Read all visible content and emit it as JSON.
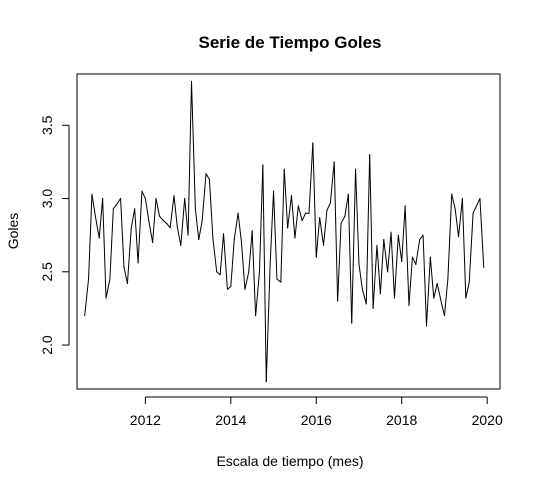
{
  "chart_data": {
    "type": "line",
    "title": "Serie de Tiempo Goles",
    "xlabel": "Escala de tiempo (mes)",
    "ylabel": "Goles",
    "xlim": [
      2010.4,
      2020.3
    ],
    "ylim": [
      1.7,
      3.85
    ],
    "xticks": [
      "2012",
      "2014",
      "2016",
      "2018",
      "2020"
    ],
    "yticks": [
      "2.0",
      "2.5",
      "3.0",
      "3.5"
    ],
    "grid": false,
    "series": [
      {
        "x": [
          2010.58,
          2010.67,
          2010.75,
          2010.83,
          2010.92,
          2011.0,
          2011.08,
          2011.17,
          2011.25,
          2011.33,
          2011.42,
          2011.5,
          2011.58,
          2011.67,
          2011.75,
          2011.83,
          2011.92,
          2012.0,
          2012.08,
          2012.17,
          2012.25,
          2012.33,
          2012.42,
          2012.5,
          2012.58,
          2012.67,
          2012.75,
          2012.83,
          2012.92,
          2013.0,
          2013.08,
          2013.17,
          2013.25,
          2013.33,
          2013.42,
          2013.5,
          2013.58,
          2013.67,
          2013.75,
          2013.83,
          2013.92,
          2014.0,
          2014.08,
          2014.17,
          2014.25,
          2014.33,
          2014.42,
          2014.5,
          2014.58,
          2014.67,
          2014.75,
          2014.83,
          2014.92,
          2015.0,
          2015.08,
          2015.17,
          2015.25,
          2015.33,
          2015.42,
          2015.5,
          2015.58,
          2015.67,
          2015.75,
          2015.83,
          2015.92,
          2016.0,
          2016.08,
          2016.17,
          2016.25,
          2016.33,
          2016.42,
          2016.5,
          2016.58,
          2016.67,
          2016.75,
          2016.83,
          2016.92,
          2017.0,
          2017.08,
          2017.17,
          2017.25,
          2017.33,
          2017.42,
          2017.5,
          2017.58,
          2017.67,
          2017.75,
          2017.83,
          2017.92,
          2018.0,
          2018.08,
          2018.17,
          2018.25,
          2018.33,
          2018.42,
          2018.5,
          2018.58,
          2018.67,
          2018.75,
          2018.83,
          2018.92,
          2019.0,
          2019.08,
          2019.17,
          2019.25,
          2019.33,
          2019.42,
          2019.5,
          2019.58,
          2019.67,
          2019.75,
          2019.83,
          2019.92
        ],
        "values": [
          2.2,
          2.45,
          3.03,
          2.88,
          2.73,
          3.0,
          2.32,
          2.45,
          2.93,
          2.96,
          3.0,
          2.53,
          2.42,
          2.8,
          2.93,
          2.56,
          3.05,
          3.0,
          2.85,
          2.7,
          3.0,
          2.88,
          2.85,
          2.83,
          2.8,
          3.02,
          2.8,
          2.68,
          3.0,
          2.75,
          3.8,
          2.93,
          2.72,
          2.85,
          3.17,
          3.13,
          2.73,
          2.5,
          2.48,
          2.76,
          2.38,
          2.4,
          2.72,
          2.9,
          2.7,
          2.38,
          2.5,
          2.78,
          2.2,
          2.5,
          3.23,
          1.75,
          2.55,
          3.05,
          2.45,
          2.43,
          3.2,
          2.8,
          3.02,
          2.73,
          2.95,
          2.85,
          2.9,
          2.9,
          3.38,
          2.6,
          2.87,
          2.68,
          2.92,
          2.97,
          3.25,
          2.3,
          2.83,
          2.88,
          3.03,
          2.15,
          3.2,
          2.55,
          2.38,
          2.28,
          3.3,
          2.25,
          2.68,
          2.35,
          2.72,
          2.5,
          2.77,
          2.32,
          2.75,
          2.57,
          2.95,
          2.27,
          2.6,
          2.55,
          2.72,
          2.75,
          2.13,
          2.6,
          2.32,
          2.42,
          2.3,
          2.2,
          2.45,
          3.03,
          2.93,
          2.74,
          3.0,
          2.32,
          2.43,
          2.9,
          2.95,
          3.0,
          2.53
        ]
      }
    ]
  }
}
